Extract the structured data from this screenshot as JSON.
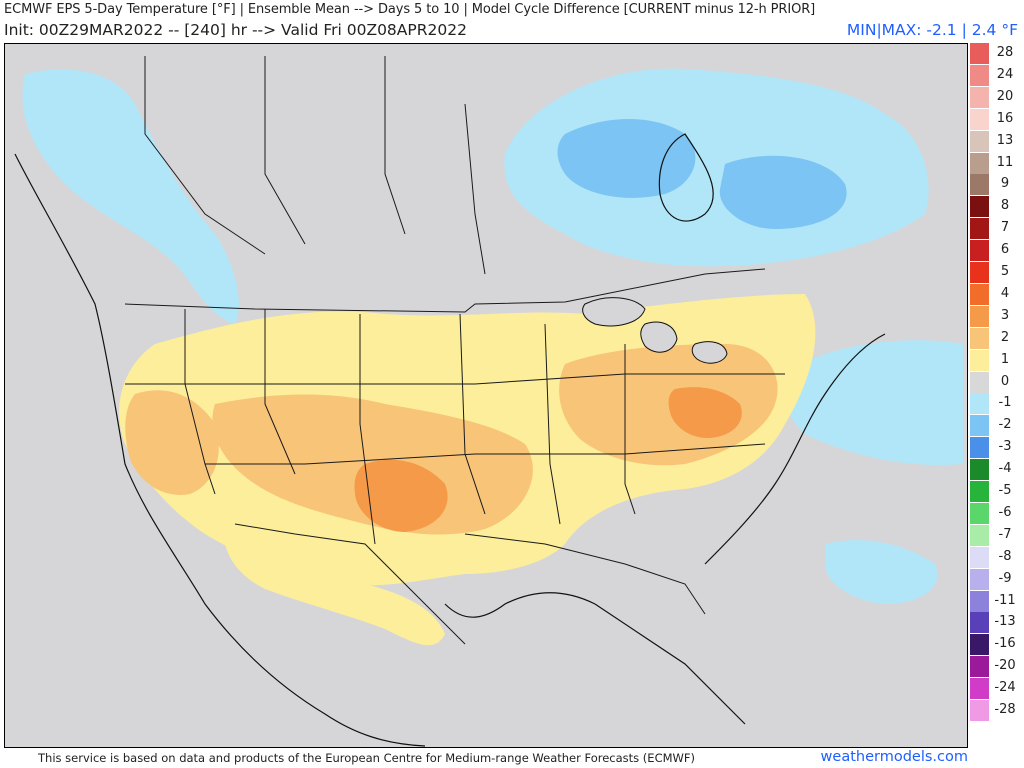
{
  "header": {
    "title": "ECMWF EPS 5-Day Temperature [°F] | Ensemble Mean --> Days 5 to 10 | Model Cycle Difference [CURRENT minus 12-h PRIOR]",
    "subtitle": "Init: 00Z29MAR2022 -- [240] hr --> Valid Fri 00Z08APR2022",
    "minmax": "MIN|MAX: -2.1 | 2.4 °F"
  },
  "legend": {
    "items": [
      {
        "label": "28",
        "color": "#e85c5c"
      },
      {
        "label": "24",
        "color": "#f08a86"
      },
      {
        "label": "20",
        "color": "#f5b3ad"
      },
      {
        "label": "16",
        "color": "#f9d4cc"
      },
      {
        "label": "13",
        "color": "#d9c4b9"
      },
      {
        "label": "11",
        "color": "#b99d8d"
      },
      {
        "label": "9",
        "color": "#9b7867"
      },
      {
        "label": "8",
        "color": "#7a1010"
      },
      {
        "label": "7",
        "color": "#a31616"
      },
      {
        "label": "6",
        "color": "#c82020"
      },
      {
        "label": "5",
        "color": "#e8321c"
      },
      {
        "label": "4",
        "color": "#f26c2a"
      },
      {
        "label": "3",
        "color": "#f59a48"
      },
      {
        "label": "2",
        "color": "#f8c478"
      },
      {
        "label": "1",
        "color": "#fcee9a"
      },
      {
        "label": "0",
        "color": "#d8d8d8"
      },
      {
        "label": "-1",
        "color": "#b0e6f8"
      },
      {
        "label": "-2",
        "color": "#7cc4f4"
      },
      {
        "label": "-3",
        "color": "#4a90e8"
      },
      {
        "label": "-4",
        "color": "#1a8a2a"
      },
      {
        "label": "-5",
        "color": "#28b43a"
      },
      {
        "label": "-6",
        "color": "#5ad66a"
      },
      {
        "label": "-7",
        "color": "#a8eca8"
      },
      {
        "label": "-8",
        "color": "#dcdcf6"
      },
      {
        "label": "-9",
        "color": "#b8b0ec"
      },
      {
        "label": "-11",
        "color": "#8c82dc"
      },
      {
        "label": "-13",
        "color": "#5a40b8"
      },
      {
        "label": "-16",
        "color": "#3a1868"
      },
      {
        "label": "-20",
        "color": "#9a1a9a"
      },
      {
        "label": "-24",
        "color": "#d03cc8"
      },
      {
        "label": "-28",
        "color": "#f09ae6"
      }
    ]
  },
  "footer": {
    "attribution": "This service is based on data and products of the European Centre for Medium-range Weather Forecasts (ECMWF)",
    "brand": "weathermodels.com"
  },
  "colors": {
    "background": "#d6d6d8",
    "positive_1": "#fcee9a",
    "positive_2": "#f8c478",
    "positive_3": "#f59a48",
    "negative_1": "#b0e6f8",
    "negative_2": "#7cc4f4",
    "negative_3": "#4a90e8",
    "accent": "#1f5fff"
  }
}
